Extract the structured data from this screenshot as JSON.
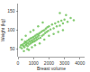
{
  "chart_data": {
    "type": "scatter",
    "x_label": "Breast volume",
    "y_label": "Weight (kg)",
    "color": "#5dbb46",
    "marker": "circle",
    "grid": false,
    "x": [
      150,
      200,
      250,
      300,
      350,
      400,
      420,
      450,
      500,
      520,
      550,
      600,
      620,
      650,
      700,
      720,
      750,
      800,
      820,
      850,
      900,
      920,
      950,
      1000,
      1020,
      1050,
      1100,
      1120,
      1150,
      1200,
      1220,
      1250,
      1300,
      1320,
      1350,
      1400,
      1450,
      1500,
      1550,
      1600,
      1650,
      1700,
      1750,
      1800,
      1850,
      1900,
      1950,
      2000,
      2100,
      2200,
      2300,
      2400,
      2500,
      2600,
      2700,
      2800,
      2900,
      3000,
      3200,
      3400,
      3600,
      250,
      500,
      800,
      1000,
      1300,
      1600,
      600,
      900,
      1100,
      1400,
      1700,
      2000,
      2300,
      2600,
      2900,
      3100,
      2700,
      380,
      700
    ],
    "values": [
      55,
      60,
      52,
      62,
      58,
      65,
      55,
      70,
      60,
      68,
      63,
      72,
      58,
      66,
      75,
      62,
      70,
      78,
      65,
      72,
      80,
      68,
      74,
      82,
      70,
      77,
      85,
      72,
      80,
      88,
      75,
      83,
      90,
      78,
      86,
      92,
      80,
      95,
      85,
      98,
      88,
      100,
      92,
      104,
      95,
      108,
      98,
      110,
      102,
      115,
      105,
      118,
      110,
      122,
      112,
      125,
      118,
      128,
      122,
      132,
      126,
      75,
      85,
      95,
      100,
      110,
      120,
      50,
      55,
      60,
      65,
      75,
      85,
      90,
      95,
      100,
      140,
      145,
      45,
      48
    ],
    "xlim": [
      0,
      4300
    ],
    "xticks": [
      0,
      1000,
      2000,
      3000,
      4000
    ],
    "ylim": [
      30,
      170
    ],
    "yticks": [
      50,
      100,
      150
    ]
  }
}
